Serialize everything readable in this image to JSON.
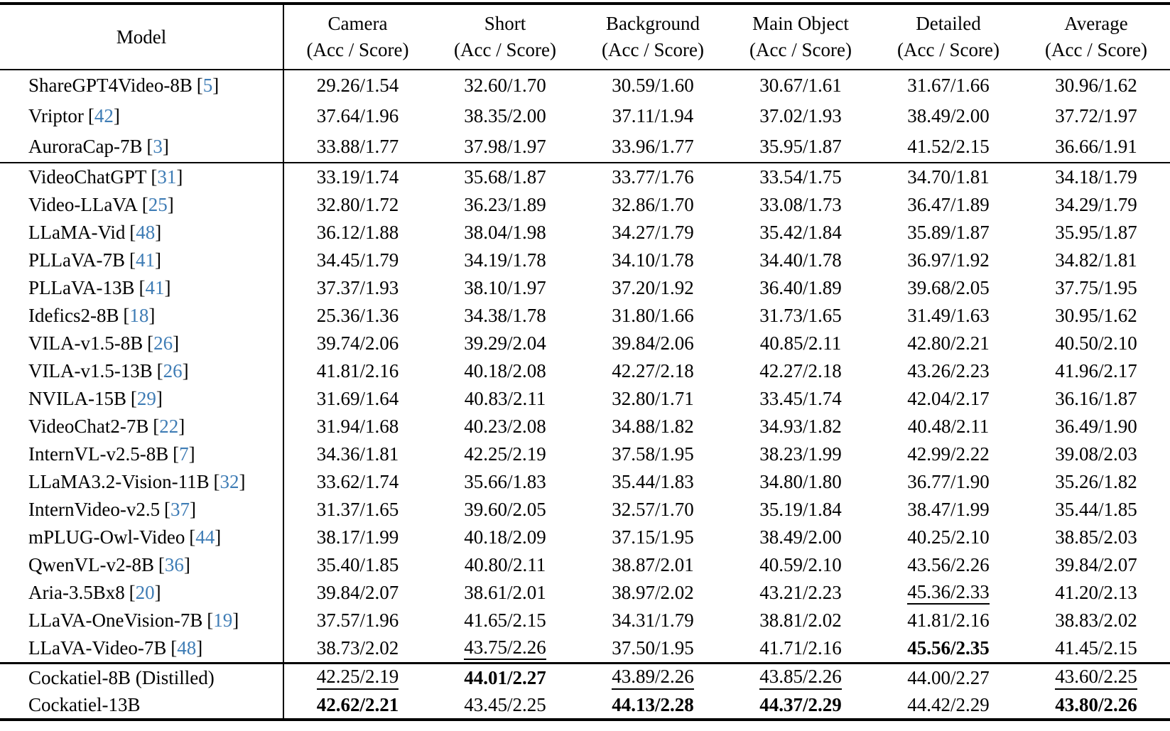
{
  "colors": {
    "citation_link": "#3e7cb5",
    "text": "#000000",
    "rule": "#000000"
  },
  "table": {
    "cite_brackets": {
      "open": "[",
      "close": "]"
    },
    "columns": [
      {
        "label": "Model",
        "sub": ""
      },
      {
        "label": "Camera",
        "sub": "(Acc / Score)"
      },
      {
        "label": "Short",
        "sub": "(Acc / Score)"
      },
      {
        "label": "Background",
        "sub": "(Acc / Score)"
      },
      {
        "label": "Main Object",
        "sub": "(Acc / Score)"
      },
      {
        "label": "Detailed",
        "sub": "(Acc / Score)"
      },
      {
        "label": "Average",
        "sub": "(Acc / Score)"
      }
    ],
    "sections": [
      {
        "rows": [
          {
            "model": "ShareGPT4Video-8B",
            "cite": "5",
            "cells": [
              "29.26/1.54",
              "32.60/1.70",
              "30.59/1.60",
              "30.67/1.61",
              "31.67/1.66",
              "30.96/1.62"
            ]
          },
          {
            "model": "Vriptor",
            "cite": "42",
            "cells": [
              "37.64/1.96",
              "38.35/2.00",
              "37.11/1.94",
              "37.02/1.93",
              "38.49/2.00",
              "37.72/1.97"
            ]
          },
          {
            "model": "AuroraCap-7B",
            "cite": "3",
            "cells": [
              "33.88/1.77",
              "37.98/1.97",
              "33.96/1.77",
              "35.95/1.87",
              "41.52/2.15",
              "36.66/1.91"
            ]
          }
        ]
      },
      {
        "rows": [
          {
            "model": "VideoChatGPT",
            "cite": "31",
            "cells": [
              "33.19/1.74",
              "35.68/1.87",
              "33.77/1.76",
              "33.54/1.75",
              "34.70/1.81",
              "34.18/1.79"
            ]
          },
          {
            "model": "Video-LLaVA",
            "cite": "25",
            "cells": [
              "32.80/1.72",
              "36.23/1.89",
              "32.86/1.70",
              "33.08/1.73",
              "36.47/1.89",
              "34.29/1.79"
            ]
          },
          {
            "model": "LLaMA-Vid",
            "cite": "48",
            "cells": [
              "36.12/1.88",
              "38.04/1.98",
              "34.27/1.79",
              "35.42/1.84",
              "35.89/1.87",
              "35.95/1.87"
            ]
          },
          {
            "model": "PLLaVA-7B",
            "cite": "41",
            "cells": [
              "34.45/1.79",
              "34.19/1.78",
              "34.10/1.78",
              "34.40/1.78",
              "36.97/1.92",
              "34.82/1.81"
            ]
          },
          {
            "model": "PLLaVA-13B",
            "cite": "41",
            "cells": [
              "37.37/1.93",
              "38.10/1.97",
              "37.20/1.92",
              "36.40/1.89",
              "39.68/2.05",
              "37.75/1.95"
            ]
          },
          {
            "model": "Idefics2-8B",
            "cite": "18",
            "cells": [
              "25.36/1.36",
              "34.38/1.78",
              "31.80/1.66",
              "31.73/1.65",
              "31.49/1.63",
              "30.95/1.62"
            ]
          },
          {
            "model": "VILA-v1.5-8B",
            "cite": "26",
            "cells": [
              "39.74/2.06",
              "39.29/2.04",
              "39.84/2.06",
              "40.85/2.11",
              "42.80/2.21",
              "40.50/2.10"
            ]
          },
          {
            "model": "VILA-v1.5-13B",
            "cite": "26",
            "cells": [
              "41.81/2.16",
              "40.18/2.08",
              "42.27/2.18",
              "42.27/2.18",
              "43.26/2.23",
              "41.96/2.17"
            ]
          },
          {
            "model": "NVILA-15B",
            "cite": "29",
            "cells": [
              "31.69/1.64",
              "40.83/2.11",
              "32.80/1.71",
              "33.45/1.74",
              "42.04/2.17",
              "36.16/1.87"
            ]
          },
          {
            "model": "VideoChat2-7B",
            "cite": "22",
            "cells": [
              "31.94/1.68",
              "40.23/2.08",
              "34.88/1.82",
              "34.93/1.82",
              "40.48/2.11",
              "36.49/1.90"
            ]
          },
          {
            "model": "InternVL-v2.5-8B",
            "cite": "7",
            "cells": [
              "34.36/1.81",
              "42.25/2.19",
              "37.58/1.95",
              "38.23/1.99",
              "42.99/2.22",
              "39.08/2.03"
            ]
          },
          {
            "model": "LLaMA3.2-Vision-11B",
            "cite": "32",
            "cells": [
              "33.62/1.74",
              "35.66/1.83",
              "35.44/1.83",
              "34.80/1.80",
              "36.77/1.90",
              "35.26/1.82"
            ]
          },
          {
            "model": "InternVideo-v2.5",
            "cite": "37",
            "cells": [
              "31.37/1.65",
              "39.60/2.05",
              "32.57/1.70",
              "35.19/1.84",
              "38.47/1.99",
              "35.44/1.85"
            ]
          },
          {
            "model": "mPLUG-Owl-Video",
            "cite": "44",
            "cells": [
              "38.17/1.99",
              "40.18/2.09",
              "37.15/1.95",
              "38.49/2.00",
              "40.25/2.10",
              "38.85/2.03"
            ]
          },
          {
            "model": "QwenVL-v2-8B",
            "cite": "36",
            "cells": [
              "35.40/1.85",
              "40.80/2.11",
              "38.87/2.01",
              "40.59/2.10",
              "43.56/2.26",
              "39.84/2.07"
            ]
          },
          {
            "model": "Aria-3.5Bx8",
            "cite": "20",
            "cells": [
              "39.84/2.07",
              "38.61/2.01",
              "38.97/2.02",
              "43.21/2.23",
              "45.36/2.33",
              "41.20/2.13"
            ],
            "underline": [
              4
            ]
          },
          {
            "model": "LLaVA-OneVision-7B",
            "cite": "19",
            "cells": [
              "37.57/1.96",
              "41.65/2.15",
              "34.31/1.79",
              "38.81/2.02",
              "41.81/2.16",
              "38.83/2.02"
            ]
          },
          {
            "model": "LLaVA-Video-7B",
            "cite": "48",
            "cells": [
              "38.73/2.02",
              "43.75/2.26",
              "37.50/1.95",
              "41.71/2.16",
              "45.56/2.35",
              "41.45/2.15"
            ],
            "underline": [
              1
            ],
            "bold": [
              4
            ]
          }
        ]
      },
      {
        "rows": [
          {
            "model": "Cockatiel-8B (Distilled)",
            "cells": [
              "42.25/2.19",
              "44.01/2.27",
              "43.89/2.26",
              "43.85/2.26",
              "44.00/2.27",
              "43.60/2.25"
            ],
            "underline": [
              0,
              2,
              3,
              5
            ],
            "bold": [
              1
            ]
          },
          {
            "model": "Cockatiel-13B",
            "cells": [
              "42.62/2.21",
              "43.45/2.25",
              "44.13/2.28",
              "44.37/2.29",
              "44.42/2.29",
              "43.80/2.26"
            ],
            "bold": [
              0,
              2,
              3,
              5
            ]
          }
        ]
      }
    ]
  }
}
